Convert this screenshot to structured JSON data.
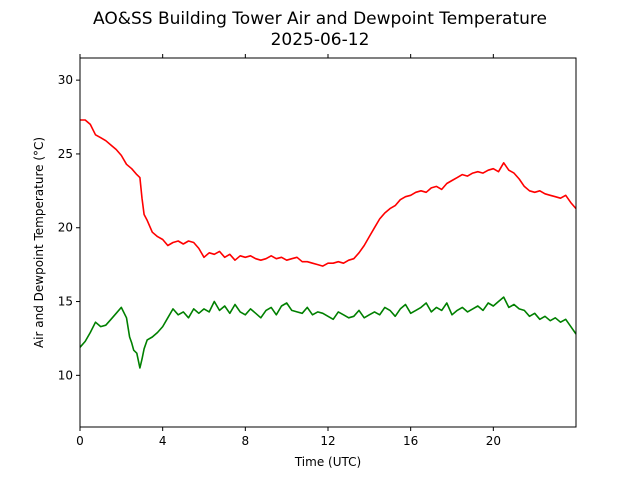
{
  "chart_data": {
    "type": "line",
    "title": "AO&SS Building Tower Air and Dewpoint Temperature",
    "subtitle": "2025-06-12",
    "xlabel": "Time (UTC)",
    "ylabel": "Air and Dewpoint Temperature (°C)",
    "xlim": [
      0,
      24
    ],
    "ylim": [
      6.5,
      31.5
    ],
    "xticks": [
      0,
      4,
      8,
      12,
      16,
      20
    ],
    "yticks": [
      10,
      15,
      20,
      25,
      30
    ],
    "grid": false,
    "series": [
      {
        "color": "#ff0000",
        "x": [
          0.0,
          0.25,
          0.5,
          0.75,
          1.0,
          1.25,
          1.5,
          1.75,
          2.0,
          2.25,
          2.5,
          2.75,
          2.9,
          3.0,
          3.1,
          3.25,
          3.5,
          3.75,
          4.0,
          4.25,
          4.5,
          4.75,
          5.0,
          5.25,
          5.5,
          5.75,
          6.0,
          6.25,
          6.5,
          6.75,
          7.0,
          7.25,
          7.5,
          7.75,
          8.0,
          8.25,
          8.5,
          8.75,
          9.0,
          9.25,
          9.5,
          9.75,
          10.0,
          10.25,
          10.5,
          10.75,
          11.0,
          11.25,
          11.5,
          11.75,
          12.0,
          12.25,
          12.5,
          12.75,
          13.0,
          13.25,
          13.5,
          13.75,
          14.0,
          14.25,
          14.5,
          14.75,
          15.0,
          15.25,
          15.5,
          15.75,
          16.0,
          16.25,
          16.5,
          16.75,
          17.0,
          17.25,
          17.5,
          17.75,
          18.0,
          18.25,
          18.5,
          18.75,
          19.0,
          19.25,
          19.5,
          19.75,
          20.0,
          20.25,
          20.5,
          20.75,
          21.0,
          21.25,
          21.5,
          21.75,
          22.0,
          22.25,
          22.5,
          22.75,
          23.0,
          23.25,
          23.5,
          23.75,
          24.0
        ],
        "y": [
          27.3,
          27.3,
          27.0,
          26.3,
          26.1,
          25.9,
          25.6,
          25.3,
          24.9,
          24.3,
          24.0,
          23.6,
          23.4,
          22.0,
          20.9,
          20.5,
          19.7,
          19.4,
          19.2,
          18.8,
          19.0,
          19.1,
          18.9,
          19.1,
          19.0,
          18.6,
          18.0,
          18.3,
          18.2,
          18.4,
          18.0,
          18.2,
          17.8,
          18.1,
          18.0,
          18.1,
          17.9,
          17.8,
          17.9,
          18.1,
          17.9,
          18.0,
          17.8,
          17.9,
          18.0,
          17.7,
          17.7,
          17.6,
          17.5,
          17.4,
          17.6,
          17.6,
          17.7,
          17.6,
          17.8,
          17.9,
          18.3,
          18.8,
          19.4,
          20.0,
          20.6,
          21.0,
          21.3,
          21.5,
          21.9,
          22.1,
          22.2,
          22.4,
          22.5,
          22.4,
          22.7,
          22.8,
          22.6,
          23.0,
          23.2,
          23.4,
          23.6,
          23.5,
          23.7,
          23.8,
          23.7,
          23.9,
          24.0,
          23.8,
          24.4,
          23.9,
          23.7,
          23.3,
          22.8,
          22.5,
          22.4,
          22.5,
          22.3,
          22.2,
          22.1,
          22.0,
          22.2,
          21.7,
          21.3
        ]
      },
      {
        "color": "#008000",
        "x": [
          0.0,
          0.25,
          0.5,
          0.75,
          1.0,
          1.25,
          1.5,
          1.75,
          2.0,
          2.25,
          2.4,
          2.5,
          2.6,
          2.75,
          2.9,
          3.0,
          3.1,
          3.25,
          3.5,
          3.75,
          4.0,
          4.25,
          4.5,
          4.75,
          5.0,
          5.25,
          5.5,
          5.75,
          6.0,
          6.25,
          6.5,
          6.75,
          7.0,
          7.25,
          7.5,
          7.75,
          8.0,
          8.25,
          8.5,
          8.75,
          9.0,
          9.25,
          9.5,
          9.75,
          10.0,
          10.25,
          10.5,
          10.75,
          11.0,
          11.25,
          11.5,
          11.75,
          12.0,
          12.25,
          12.5,
          12.75,
          13.0,
          13.25,
          13.5,
          13.75,
          14.0,
          14.25,
          14.5,
          14.75,
          15.0,
          15.25,
          15.5,
          15.75,
          16.0,
          16.25,
          16.5,
          16.75,
          17.0,
          17.25,
          17.5,
          17.75,
          18.0,
          18.25,
          18.5,
          18.75,
          19.0,
          19.25,
          19.5,
          19.75,
          20.0,
          20.25,
          20.5,
          20.75,
          21.0,
          21.25,
          21.5,
          21.75,
          22.0,
          22.25,
          22.5,
          22.75,
          23.0,
          23.25,
          23.5,
          23.75,
          24.0
        ],
        "y": [
          11.9,
          12.3,
          12.9,
          13.6,
          13.3,
          13.4,
          13.8,
          14.2,
          14.6,
          13.9,
          12.6,
          12.2,
          11.7,
          11.5,
          10.5,
          11.1,
          11.8,
          12.4,
          12.6,
          12.9,
          13.3,
          13.9,
          14.5,
          14.1,
          14.3,
          13.9,
          14.5,
          14.2,
          14.5,
          14.3,
          15.0,
          14.4,
          14.7,
          14.2,
          14.8,
          14.3,
          14.1,
          14.5,
          14.2,
          13.9,
          14.4,
          14.6,
          14.1,
          14.7,
          14.9,
          14.4,
          14.3,
          14.2,
          14.6,
          14.1,
          14.3,
          14.2,
          14.0,
          13.8,
          14.3,
          14.1,
          13.9,
          14.0,
          14.4,
          13.9,
          14.1,
          14.3,
          14.1,
          14.6,
          14.4,
          14.0,
          14.5,
          14.8,
          14.2,
          14.4,
          14.6,
          14.9,
          14.3,
          14.6,
          14.4,
          14.9,
          14.1,
          14.4,
          14.6,
          14.3,
          14.5,
          14.7,
          14.4,
          14.9,
          14.7,
          15.0,
          15.3,
          14.6,
          14.8,
          14.5,
          14.4,
          14.0,
          14.2,
          13.8,
          14.0,
          13.7,
          13.9,
          13.6,
          13.8,
          13.3,
          12.8
        ]
      }
    ]
  }
}
